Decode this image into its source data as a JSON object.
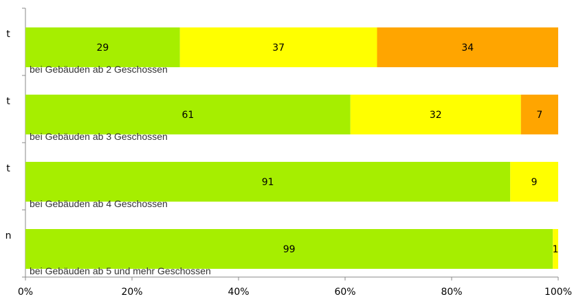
{
  "chart_data": {
    "type": "bar",
    "orientation": "horizontal",
    "stacked": true,
    "percent": true,
    "row_labels": [
      "t",
      "t",
      "t",
      "n"
    ],
    "categories": [
      "bei Gebäuden ab 2 Geschossen",
      "bei Gebäuden ab 3 Geschossen",
      "bei Gebäuden ab 4 Geschossen",
      "bei Gebäuden ab 5 und mehr Geschossen"
    ],
    "series": [
      {
        "color": "#a6ee00",
        "values": [
          29,
          61,
          91,
          99
        ]
      },
      {
        "color": "#ffff00",
        "values": [
          37,
          32,
          9,
          1
        ]
      },
      {
        "color": "#ffa500",
        "values": [
          34,
          7,
          0,
          0
        ]
      }
    ],
    "xlim": [
      0,
      100
    ],
    "x_ticks": [
      "0%",
      "20%",
      "40%",
      "60%",
      "80%",
      "100%"
    ],
    "grid": false,
    "legend": "none"
  }
}
